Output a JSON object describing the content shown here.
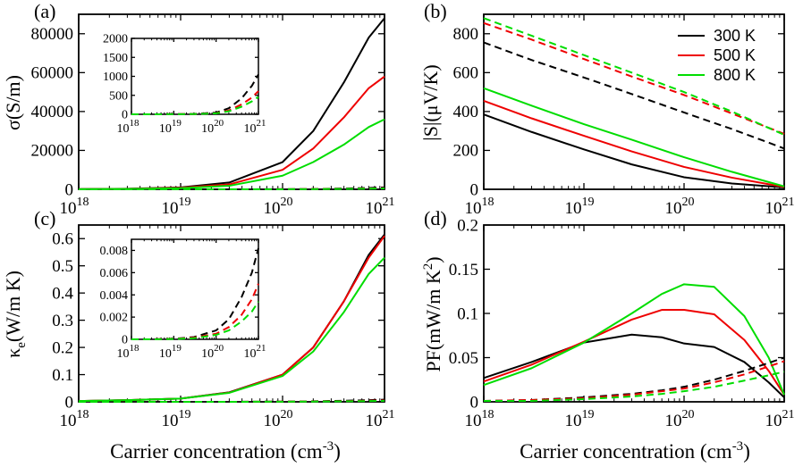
{
  "figure": {
    "xlabel_main": "Carrier concentration (cm",
    "xlabel_sup": "-3",
    "xlabel_end": ")",
    "colors": {
      "300 K": "#000000",
      "500 K": "#ee0000",
      "800 K": "#00dd00"
    }
  },
  "legend": [
    "300 K",
    "500 K",
    "800 K"
  ],
  "chart_data": [
    {
      "type": "line",
      "panel": "(a)",
      "ylabel": "σ(S/m)",
      "xscale": "log",
      "xlim": [
        1e+18,
        1e+21
      ],
      "ylim": [
        0,
        90000
      ],
      "yticks": [
        0,
        20000,
        40000,
        60000,
        80000
      ],
      "xticks": [
        {
          "base": "10",
          "exp": "18"
        },
        {
          "base": "10",
          "exp": "19"
        },
        {
          "base": "10",
          "exp": "20"
        },
        {
          "base": "10",
          "exp": "21"
        }
      ],
      "x": [
        1e+18,
        3e+18,
        1e+19,
        3e+19,
        1e+20,
        2e+20,
        4e+20,
        7e+20,
        1e+21
      ],
      "series": [
        {
          "name": "300 K",
          "style": "solid",
          "values": [
            100,
            300,
            1000,
            3500,
            14000,
            30000,
            55000,
            78000,
            88000
          ]
        },
        {
          "name": "500 K",
          "style": "solid",
          "values": [
            80,
            240,
            800,
            2500,
            10000,
            21000,
            37000,
            52000,
            58000
          ]
        },
        {
          "name": "800 K",
          "style": "solid",
          "values": [
            60,
            180,
            600,
            1800,
            7000,
            14000,
            23000,
            32000,
            36000
          ]
        },
        {
          "name": "300 K",
          "style": "dashed",
          "values": [
            0,
            0,
            5,
            15,
            40,
            150,
            400,
            700,
            1000
          ]
        },
        {
          "name": "500 K",
          "style": "dashed",
          "values": [
            0,
            0,
            4,
            10,
            30,
            100,
            250,
            420,
            600
          ]
        },
        {
          "name": "800 K",
          "style": "dashed",
          "values": [
            0,
            0,
            3,
            8,
            25,
            80,
            200,
            330,
            450
          ]
        }
      ],
      "inset": {
        "ylim": [
          0,
          2000
        ],
        "yticks": [
          0,
          500,
          1000,
          1500,
          2000
        ],
        "xticks": [
          {
            "base": "10",
            "exp": "18"
          },
          {
            "base": "10",
            "exp": "19"
          },
          {
            "base": "10",
            "exp": "20"
          },
          {
            "base": "10",
            "exp": "21"
          }
        ],
        "series": [
          {
            "name": "300 K",
            "style": "dashed",
            "values": [
              0,
              1,
              3,
              10,
              45,
              160,
              420,
              750,
              1050
            ]
          },
          {
            "name": "500 K",
            "style": "dashed",
            "values": [
              0,
              1,
              2,
              7,
              30,
              100,
              260,
              440,
              610
            ]
          },
          {
            "name": "800 K",
            "style": "dashed",
            "values": [
              0,
              1,
              2,
              6,
              25,
              80,
              200,
              340,
              460
            ]
          }
        ]
      }
    },
    {
      "type": "line",
      "panel": "(b)",
      "ylabel": "|S|(μV/K)",
      "xscale": "log",
      "xlim": [
        1e+18,
        1e+21
      ],
      "ylim": [
        0,
        900
      ],
      "yticks": [
        0,
        200,
        400,
        600,
        800
      ],
      "xticks": [
        {
          "base": "10",
          "exp": "18"
        },
        {
          "base": "10",
          "exp": "19"
        },
        {
          "base": "10",
          "exp": "20"
        },
        {
          "base": "10",
          "exp": "21"
        }
      ],
      "x": [
        1e+18,
        3e+18,
        1e+19,
        3e+19,
        1e+20,
        3e+20,
        1e+21
      ],
      "series": [
        {
          "name": "300 K",
          "style": "solid",
          "values": [
            385,
            295,
            205,
            128,
            62,
            30,
            10
          ]
        },
        {
          "name": "500 K",
          "style": "solid",
          "values": [
            455,
            365,
            275,
            195,
            115,
            60,
            12
          ]
        },
        {
          "name": "800 K",
          "style": "solid",
          "values": [
            520,
            430,
            335,
            255,
            165,
            90,
            15
          ]
        },
        {
          "name": "300 K",
          "style": "dashed",
          "values": [
            755,
            665,
            575,
            490,
            395,
            310,
            210
          ]
        },
        {
          "name": "500 K",
          "style": "dashed",
          "values": [
            855,
            770,
            670,
            580,
            485,
            390,
            285
          ]
        },
        {
          "name": "800 K",
          "style": "dashed",
          "values": [
            880,
            790,
            690,
            600,
            500,
            400,
            280
          ]
        }
      ]
    },
    {
      "type": "line",
      "panel": "(c)",
      "ylabel_main": "κ",
      "ylabel_sub": "e",
      "ylabel_rest": "(W/m K)",
      "xscale": "log",
      "xlim": [
        1e+18,
        1e+21
      ],
      "ylim": [
        0,
        0.65
      ],
      "yticks": [
        0,
        0.1,
        0.2,
        0.3,
        0.4,
        0.5,
        0.6
      ],
      "xticks": [
        {
          "base": "10",
          "exp": "18"
        },
        {
          "base": "10",
          "exp": "19"
        },
        {
          "base": "10",
          "exp": "20"
        },
        {
          "base": "10",
          "exp": "21"
        }
      ],
      "x": [
        1e+18,
        3e+18,
        1e+19,
        3e+19,
        1e+20,
        2e+20,
        4e+20,
        7e+20,
        1e+21
      ],
      "series": [
        {
          "name": "300 K",
          "style": "solid",
          "values": [
            0.003,
            0.006,
            0.012,
            0.035,
            0.1,
            0.2,
            0.37,
            0.54,
            0.615
          ]
        },
        {
          "name": "500 K",
          "style": "solid",
          "values": [
            0.003,
            0.006,
            0.012,
            0.034,
            0.1,
            0.2,
            0.37,
            0.53,
            0.61
          ]
        },
        {
          "name": "800 K",
          "style": "solid",
          "values": [
            0.003,
            0.006,
            0.012,
            0.033,
            0.095,
            0.185,
            0.33,
            0.47,
            0.53
          ]
        },
        {
          "name": "300 K",
          "style": "dashed",
          "values": [
            0,
            0,
            0,
            0,
            0.001,
            0.002,
            0.004,
            0.006,
            0.008
          ]
        },
        {
          "name": "500 K",
          "style": "dashed",
          "values": [
            0,
            0,
            0,
            0,
            0.0007,
            0.0014,
            0.0025,
            0.004,
            0.005
          ]
        },
        {
          "name": "800 K",
          "style": "dashed",
          "values": [
            0,
            0,
            0,
            0,
            0.0005,
            0.001,
            0.0018,
            0.0027,
            0.0035
          ]
        }
      ],
      "inset": {
        "ylim": [
          0,
          0.009
        ],
        "yticks": [
          0,
          0.002,
          0.004,
          0.006,
          0.008
        ],
        "xticks": [
          {
            "base": "10",
            "exp": "18"
          },
          {
            "base": "10",
            "exp": "19"
          },
          {
            "base": "10",
            "exp": "20"
          },
          {
            "base": "10",
            "exp": "21"
          }
        ],
        "series": [
          {
            "name": "300 K",
            "style": "dashed",
            "values": [
              0,
              0,
              5e-05,
              0.0002,
              0.0008,
              0.0018,
              0.0038,
              0.006,
              0.0082
            ]
          },
          {
            "name": "500 K",
            "style": "dashed",
            "values": [
              0,
              0,
              4e-05,
              0.00015,
              0.0005,
              0.0011,
              0.0022,
              0.0036,
              0.005
            ]
          },
          {
            "name": "800 K",
            "style": "dashed",
            "values": [
              0,
              0,
              3e-05,
              0.0001,
              0.0004,
              0.0008,
              0.0016,
              0.0025,
              0.0034
            ]
          }
        ]
      }
    },
    {
      "type": "line",
      "panel": "(d)",
      "ylabel_main": "PF(mW/m K",
      "ylabel_sup": "2",
      "ylabel_end": ")",
      "xscale": "log",
      "xlim": [
        1e+18,
        1e+21
      ],
      "ylim": [
        0,
        0.2
      ],
      "yticks": [
        0,
        0.05,
        0.1,
        0.15,
        0.2
      ],
      "xticks": [
        {
          "base": "10",
          "exp": "18"
        },
        {
          "base": "10",
          "exp": "19"
        },
        {
          "base": "10",
          "exp": "20"
        },
        {
          "base": "10",
          "exp": "21"
        }
      ],
      "x": [
        1e+18,
        3e+18,
        1e+19,
        3e+19,
        6e+19,
        1e+20,
        2e+20,
        4e+20,
        7e+20,
        1e+21
      ],
      "series": [
        {
          "name": "300 K",
          "style": "solid",
          "values": [
            0.027,
            0.045,
            0.067,
            0.076,
            0.073,
            0.066,
            0.062,
            0.045,
            0.022,
            0.005
          ]
        },
        {
          "name": "500 K",
          "style": "solid",
          "values": [
            0.023,
            0.042,
            0.068,
            0.093,
            0.104,
            0.104,
            0.099,
            0.07,
            0.035,
            0.008
          ]
        },
        {
          "name": "800 K",
          "style": "solid",
          "values": [
            0.019,
            0.038,
            0.067,
            0.1,
            0.122,
            0.133,
            0.13,
            0.097,
            0.05,
            0.008
          ]
        },
        {
          "name": "300 K",
          "style": "dashed",
          "values": [
            0.001,
            0.002,
            0.005,
            0.009,
            0.013,
            0.017,
            0.025,
            0.035,
            0.044,
            0.05
          ]
        },
        {
          "name": "500 K",
          "style": "dashed",
          "values": [
            0.001,
            0.002,
            0.004,
            0.008,
            0.012,
            0.015,
            0.022,
            0.031,
            0.04,
            0.046
          ]
        },
        {
          "name": "800 K",
          "style": "dashed",
          "values": [
            0.001,
            0.001,
            0.003,
            0.006,
            0.009,
            0.012,
            0.017,
            0.024,
            0.03,
            0.034
          ]
        }
      ]
    }
  ]
}
